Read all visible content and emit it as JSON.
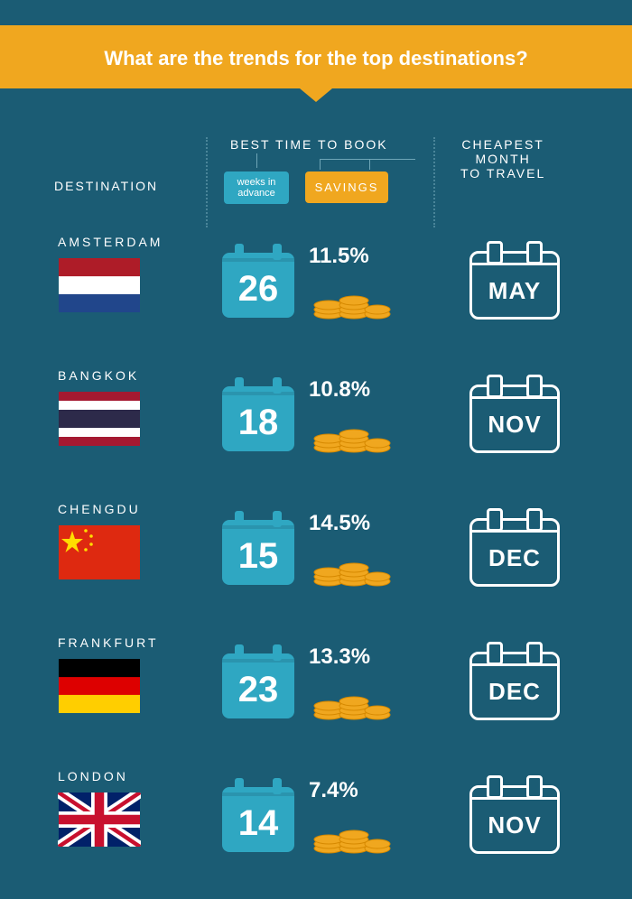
{
  "colors": {
    "bg": "#1b5c74",
    "banner": "#f0a71f",
    "cal": "#2fa7c2",
    "white": "#ffffff"
  },
  "decor_dots": [
    "#f0a71f",
    "#e2474b",
    "#2fa7c2",
    "#ffffff"
  ],
  "banner_text": "What are the trends for the top destinations?",
  "headers": {
    "destination": "DESTINATION",
    "best_time": "BEST TIME TO BOOK",
    "weeks_label": "weeks in advance",
    "savings_label": "SAVINGS",
    "cheapest_line1": "CHEAPEST",
    "cheapest_line2": "MONTH",
    "cheapest_line3": "TO TRAVEL"
  },
  "rows": [
    {
      "name": "AMSTERDAM",
      "weeks": "26",
      "savings": "11.5%",
      "month": "MAY",
      "flag": "netherlands"
    },
    {
      "name": "BANGKOK",
      "weeks": "18",
      "savings": "10.8%",
      "month": "NOV",
      "flag": "thailand"
    },
    {
      "name": "CHENGDU",
      "weeks": "15",
      "savings": "14.5%",
      "month": "DEC",
      "flag": "china"
    },
    {
      "name": "FRANKFURT",
      "weeks": "23",
      "savings": "13.3%",
      "month": "DEC",
      "flag": "germany"
    },
    {
      "name": "LONDON",
      "weeks": "14",
      "savings": "7.4%",
      "month": "NOV",
      "flag": "uk"
    }
  ]
}
